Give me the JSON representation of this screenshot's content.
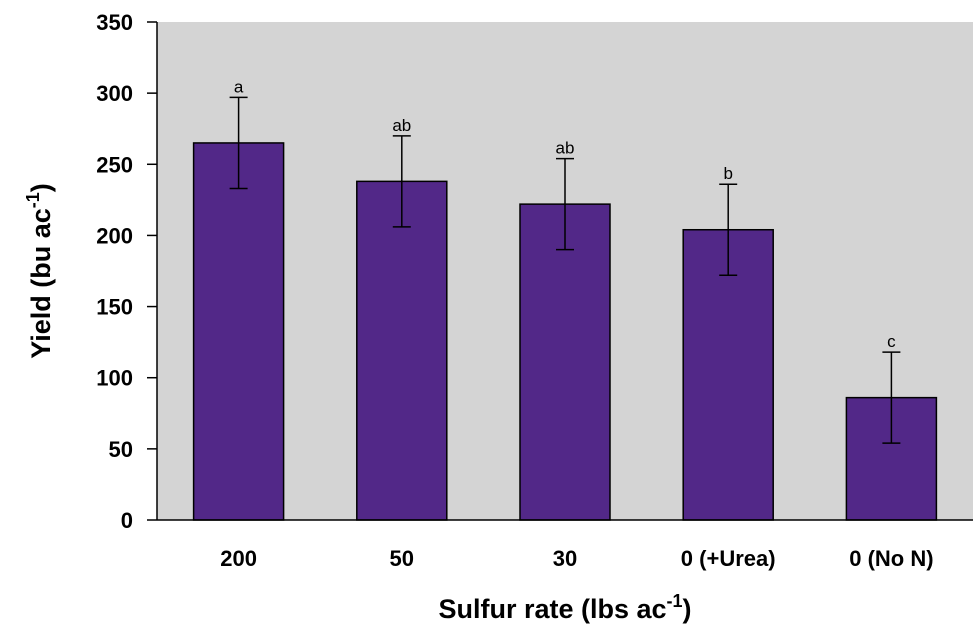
{
  "chart_data": {
    "type": "bar",
    "categories": [
      "200",
      "50",
      "30",
      "0 (+Urea)",
      "0 (No N)"
    ],
    "values": [
      265,
      238,
      222,
      204,
      86
    ],
    "errors": [
      32,
      32,
      32,
      32,
      32
    ],
    "significance_letters": [
      "a",
      "ab",
      "ab",
      "b",
      "c"
    ],
    "xlabel": {
      "main": "Sulfur rate (lbs ac",
      "superscript": "-1",
      "close": ")"
    },
    "ylabel": {
      "main": "Yield (bu ac",
      "superscript": "-1",
      "close": ")"
    },
    "ylim": [
      0,
      350
    ],
    "yticks": [
      0,
      50,
      100,
      150,
      200,
      250,
      300,
      350
    ],
    "grid": false,
    "colors": {
      "bar": "#522888",
      "plot_background": "#d4d4d4",
      "axis": "#000000"
    }
  }
}
